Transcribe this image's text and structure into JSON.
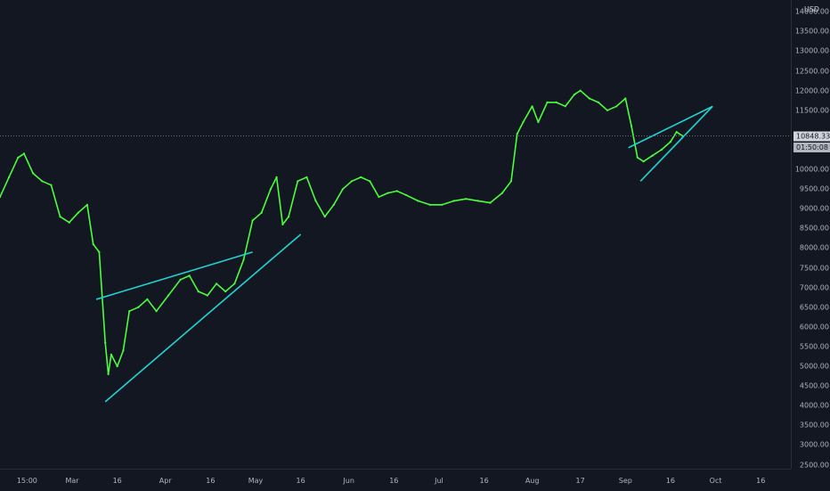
{
  "chart_data": {
    "type": "line",
    "title": "",
    "xlabel": "",
    "ylabel": "",
    "currency": "USD",
    "y_axis_labels": [
      "14000.00",
      "13500.00",
      "13000.00",
      "12500.00",
      "12000.00",
      "11500.00",
      "11000.00",
      "10500.00",
      "10000.00",
      "9500.00",
      "9000.00",
      "8500.00",
      "8000.00",
      "7500.00",
      "7000.00",
      "6500.00",
      "6000.00",
      "5500.00",
      "5000.00",
      "4500.00",
      "4000.00",
      "3500.00",
      "3000.00",
      "2500.00"
    ],
    "y_axis_values": [
      14000,
      13500,
      13000,
      12500,
      12000,
      11500,
      11000,
      10500,
      10000,
      9500,
      9000,
      8500,
      8000,
      7500,
      7000,
      6500,
      6000,
      5500,
      5000,
      4500,
      4000,
      3500,
      3000,
      2500
    ],
    "ylim": [
      2400,
      14300
    ],
    "x_axis_labels": [
      "15:00",
      "Mar",
      "16",
      "Apr",
      "16",
      "May",
      "16",
      "Jun",
      "16",
      "Jul",
      "16",
      "Aug",
      "17",
      "Sep",
      "16",
      "Oct",
      "16"
    ],
    "x_axis_dates": [
      "2020-02-15",
      "2020-03-01",
      "2020-03-16",
      "2020-04-01",
      "2020-04-16",
      "2020-05-01",
      "2020-05-16",
      "2020-06-01",
      "2020-06-16",
      "2020-07-01",
      "2020-07-16",
      "2020-08-01",
      "2020-08-17",
      "2020-09-01",
      "2020-09-16",
      "2020-10-01",
      "2020-10-16"
    ],
    "xlim": [
      "2020-02-06",
      "2020-10-26"
    ],
    "current_price": "10848.33",
    "current_price_value": 10848.33,
    "countdown": "01:50:08",
    "series": [
      {
        "color": "#4cff3f",
        "x": [
          "2020-02-06",
          "2020-02-09",
          "2020-02-12",
          "2020-02-14",
          "2020-02-17",
          "2020-02-20",
          "2020-02-23",
          "2020-02-26",
          "2020-02-29",
          "2020-03-03",
          "2020-03-06",
          "2020-03-08",
          "2020-03-10",
          "2020-03-12",
          "2020-03-13",
          "2020-03-14",
          "2020-03-16",
          "2020-03-18",
          "2020-03-20",
          "2020-03-23",
          "2020-03-26",
          "2020-03-29",
          "2020-04-02",
          "2020-04-06",
          "2020-04-09",
          "2020-04-12",
          "2020-04-15",
          "2020-04-18",
          "2020-04-21",
          "2020-04-24",
          "2020-04-27",
          "2020-04-30",
          "2020-05-03",
          "2020-05-06",
          "2020-05-08",
          "2020-05-10",
          "2020-05-12",
          "2020-05-15",
          "2020-05-18",
          "2020-05-21",
          "2020-05-24",
          "2020-05-27",
          "2020-05-30",
          "2020-06-02",
          "2020-06-05",
          "2020-06-08",
          "2020-06-11",
          "2020-06-14",
          "2020-06-17",
          "2020-06-20",
          "2020-06-24",
          "2020-06-28",
          "2020-07-02",
          "2020-07-06",
          "2020-07-10",
          "2020-07-14",
          "2020-07-18",
          "2020-07-22",
          "2020-07-25",
          "2020-07-27",
          "2020-07-29",
          "2020-08-01",
          "2020-08-03",
          "2020-08-06",
          "2020-08-09",
          "2020-08-12",
          "2020-08-15",
          "2020-08-17",
          "2020-08-20",
          "2020-08-23",
          "2020-08-26",
          "2020-08-29",
          "2020-09-01",
          "2020-09-03",
          "2020-09-05",
          "2020-09-07",
          "2020-09-10",
          "2020-09-13",
          "2020-09-16",
          "2020-09-18",
          "2020-09-20"
        ],
        "y": [
          9300,
          9800,
          10300,
          10400,
          9900,
          9700,
          9600,
          8800,
          8650,
          8900,
          9100,
          8100,
          7900,
          5600,
          4800,
          5300,
          5000,
          5400,
          6400,
          6500,
          6700,
          6400,
          6800,
          7200,
          7300,
          6900,
          6800,
          7100,
          6900,
          7100,
          7700,
          8700,
          8900,
          9500,
          9800,
          8600,
          8800,
          9700,
          9800,
          9200,
          8800,
          9100,
          9500,
          9700,
          9800,
          9700,
          9300,
          9400,
          9450,
          9350,
          9200,
          9100,
          9100,
          9200,
          9250,
          9200,
          9150,
          9400,
          9700,
          10900,
          11200,
          11600,
          11200,
          11700,
          11700,
          11600,
          11900,
          12000,
          11800,
          11700,
          11500,
          11600,
          11800,
          11100,
          10300,
          10200,
          10350,
          10500,
          10700,
          10950,
          10848
        ]
      }
    ],
    "annotations": [
      {
        "type": "trendline",
        "color": "#22d3d3",
        "from": [
          "2020-03-09",
          6700
        ],
        "to": [
          "2020-04-30",
          7900
        ]
      },
      {
        "type": "trendline",
        "color": "#22d3d3",
        "from": [
          "2020-03-12",
          4100
        ],
        "to": [
          "2020-05-16",
          8350
        ]
      },
      {
        "type": "trendline",
        "color": "#22d3d3",
        "from": [
          "2020-09-02",
          10550
        ],
        "to": [
          "2020-09-30",
          11600
        ]
      },
      {
        "type": "trendline",
        "color": "#22d3d3",
        "from": [
          "2020-09-06",
          9700
        ],
        "to": [
          "2020-09-30",
          11600
        ]
      }
    ],
    "grid": false,
    "legend": "none"
  },
  "colors": {
    "background": "#131722",
    "price_line": "#4cff3f",
    "trendline": "#22d3d3",
    "axis_text": "#b2b5be",
    "crosshair": "#787b86"
  }
}
